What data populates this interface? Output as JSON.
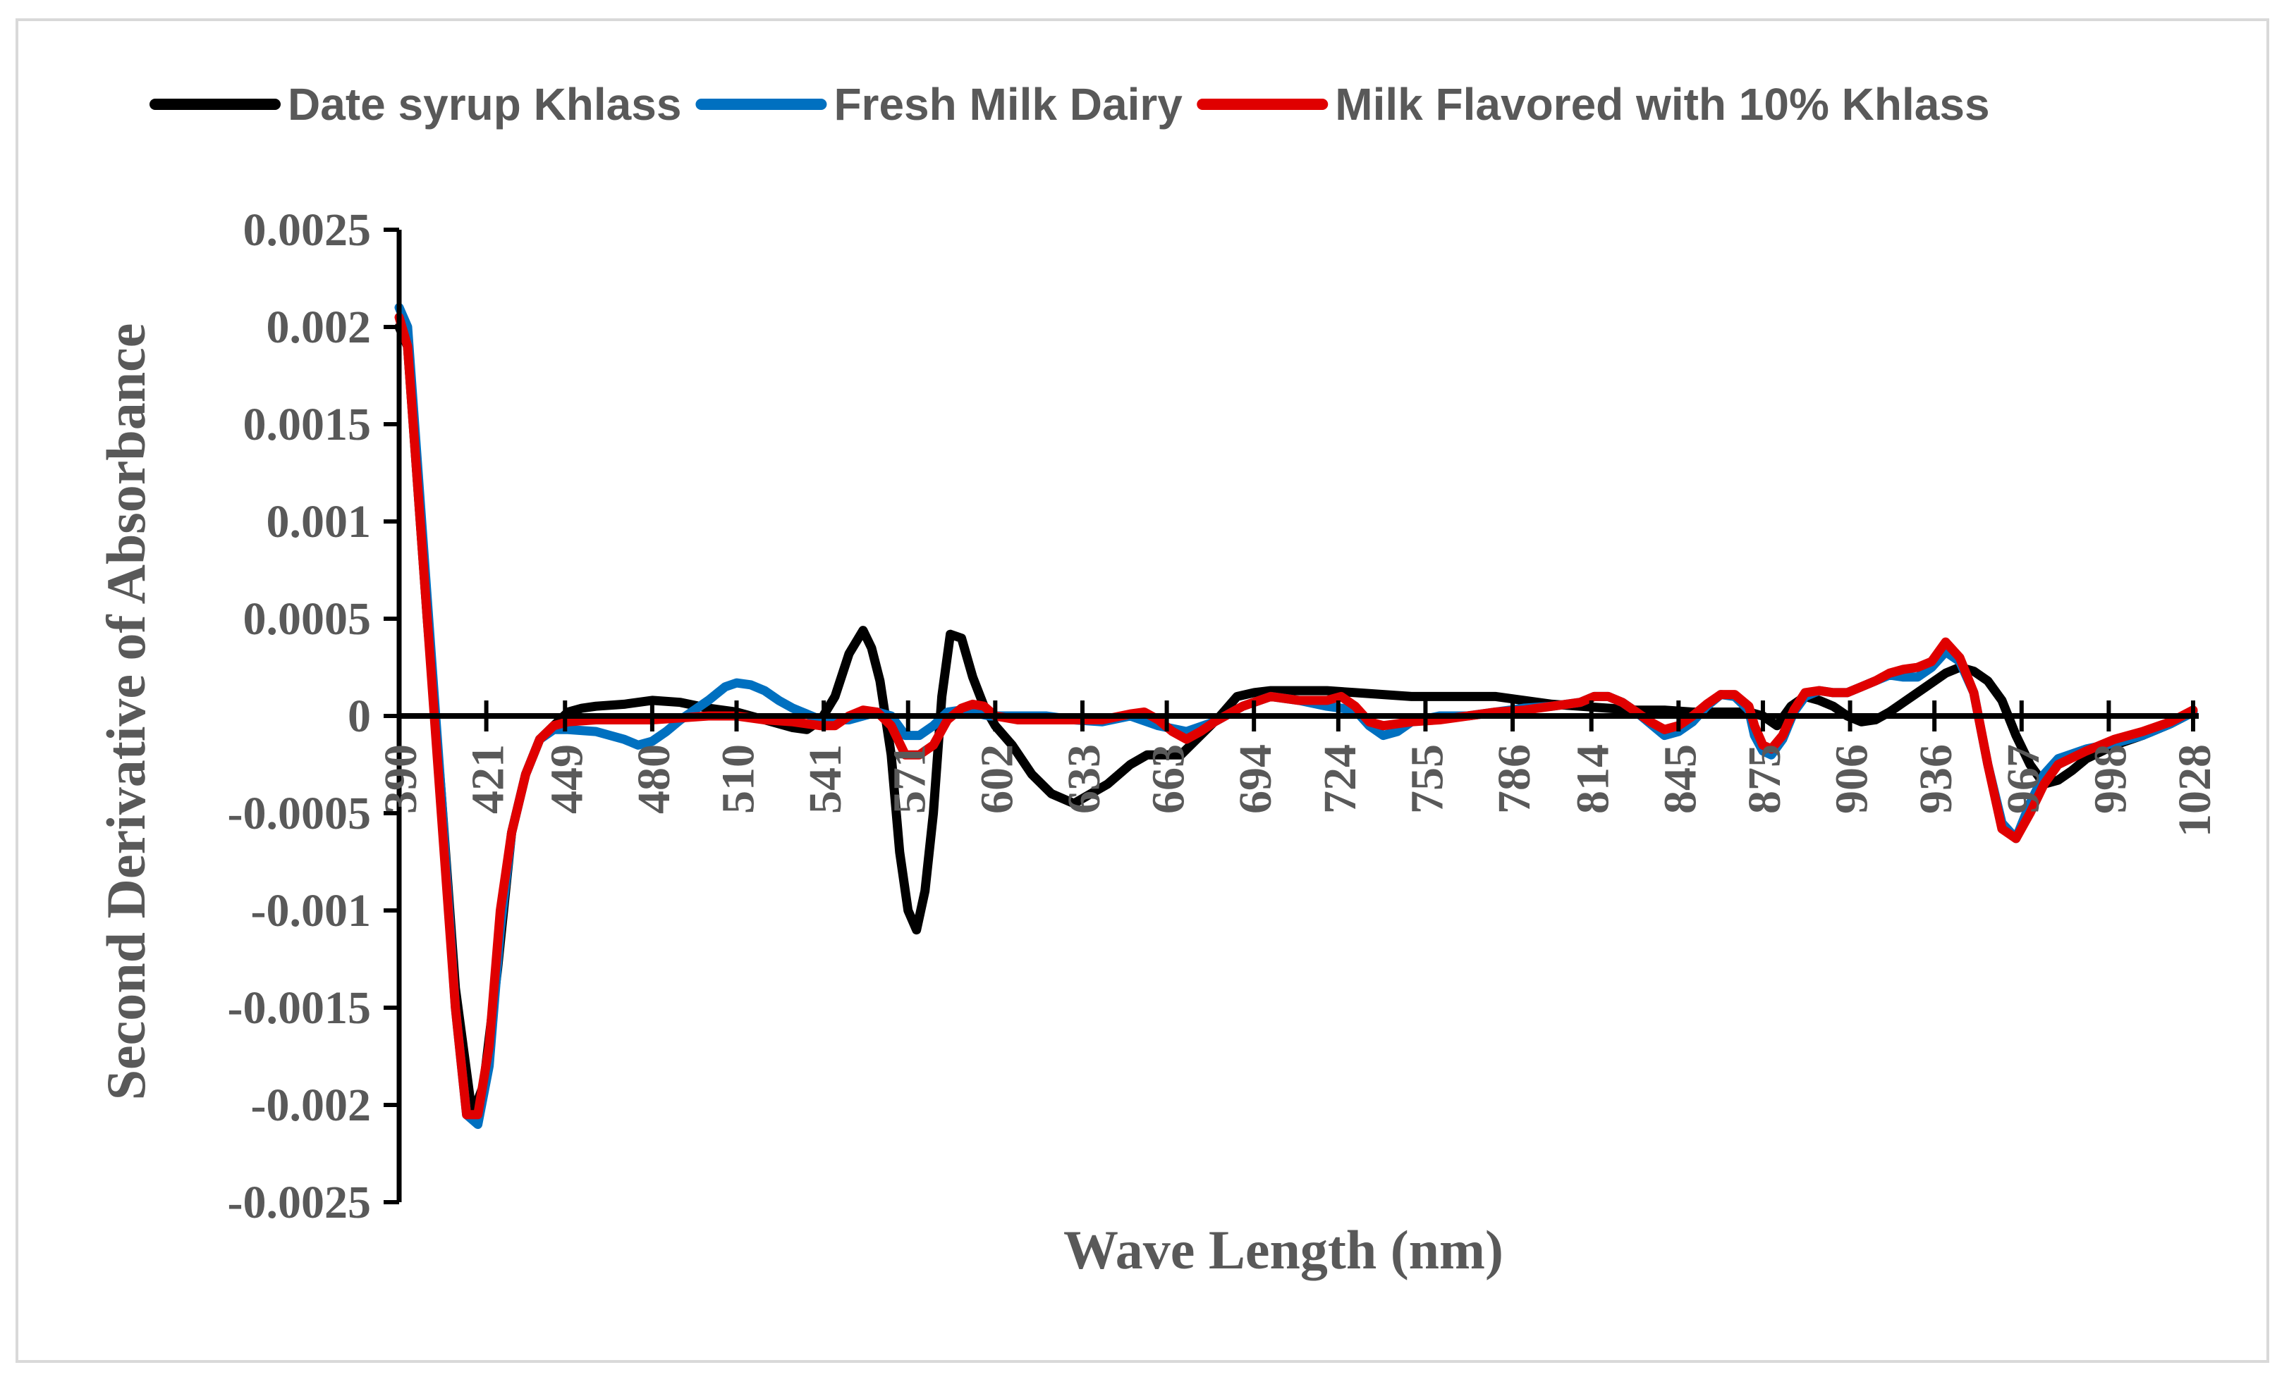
{
  "chart_data": {
    "type": "line",
    "xlabel": "Wave Length (nm)",
    "ylabel": "Second Derivative of Absorbance",
    "xlim": [
      390,
      1030
    ],
    "ylim": [
      -0.0025,
      0.0025
    ],
    "y_ticks": [
      0.0025,
      0.002,
      0.0015,
      0.001,
      0.0005,
      0,
      -0.0005,
      -0.001,
      -0.0015,
      -0.002,
      -0.0025
    ],
    "y_tick_labels": [
      "0.0025",
      "0.002",
      "0.0015",
      "0.001",
      "0.0005",
      "0",
      "-0.0005",
      "-0.001",
      "-0.0015",
      "-0.002",
      "-0.0025"
    ],
    "x_ticks": [
      390,
      421,
      449,
      480,
      510,
      541,
      571,
      602,
      633,
      663,
      694,
      724,
      755,
      786,
      814,
      845,
      875,
      906,
      936,
      967,
      998,
      1028
    ],
    "x_tick_labels": [
      "390",
      "421",
      "449",
      "480",
      "510",
      "541",
      "571",
      "602",
      "633",
      "663",
      "694",
      "724",
      "755",
      "786",
      "814",
      "845",
      "875",
      "906",
      "936",
      "967",
      "998",
      "1028"
    ],
    "legend_position": "top",
    "series": [
      {
        "name": "Date syrup Khlass",
        "color": "#000000",
        "x": [
          390,
          393,
          400,
          405,
          410,
          416,
          420,
          425,
          430,
          435,
          440,
          445,
          450,
          455,
          460,
          470,
          480,
          490,
          500,
          510,
          520,
          530,
          535,
          540,
          545,
          550,
          555,
          558,
          561,
          565,
          568,
          571,
          574,
          577,
          580,
          583,
          586,
          590,
          594,
          598,
          602,
          608,
          615,
          622,
          630,
          636,
          642,
          650,
          656,
          662,
          668,
          675,
          682,
          688,
          694,
          700,
          710,
          720,
          730,
          740,
          750,
          760,
          770,
          780,
          790,
          800,
          810,
          820,
          830,
          840,
          850,
          860,
          870,
          875,
          880,
          885,
          890,
          895,
          900,
          905,
          910,
          915,
          920,
          925,
          930,
          935,
          940,
          945,
          950,
          955,
          960,
          965,
          970,
          975,
          980,
          985,
          990,
          1000,
          1010,
          1020,
          1028
        ],
        "values": [
          0.002,
          0.0019,
          0.0005,
          -0.0004,
          -0.0014,
          -0.00205,
          -0.0019,
          -0.0013,
          -0.0006,
          -0.0003,
          -0.00012,
          -5e-05,
          2e-05,
          4e-05,
          5e-05,
          6e-05,
          8e-05,
          7e-05,
          4e-05,
          2e-05,
          -2e-05,
          -6e-05,
          -7e-05,
          -2e-05,
          0.0001,
          0.00032,
          0.00044,
          0.00035,
          0.00018,
          -0.0002,
          -0.0007,
          -0.001,
          -0.0011,
          -0.0009,
          -0.0005,
          0.0001,
          0.00042,
          0.0004,
          0.0002,
          5e-05,
          -5e-05,
          -0.00015,
          -0.0003,
          -0.0004,
          -0.00045,
          -0.0004,
          -0.00035,
          -0.00025,
          -0.0002,
          -0.0002,
          -0.0002,
          -0.0001,
          0,
          0.0001,
          0.00012,
          0.00013,
          0.00013,
          0.00013,
          0.00012,
          0.00011,
          0.0001,
          0.0001,
          0.0001,
          0.0001,
          8e-05,
          6e-05,
          5e-05,
          4e-05,
          3e-05,
          3e-05,
          2e-05,
          2e-05,
          2e-05,
          0,
          -5e-05,
          5e-05,
          0.0001,
          8e-05,
          5e-05,
          0,
          -3e-05,
          -2e-05,
          2e-05,
          7e-05,
          0.00012,
          0.00017,
          0.00022,
          0.00025,
          0.00023,
          0.00018,
          8e-05,
          -0.0001,
          -0.00025,
          -0.00035,
          -0.00033,
          -0.00028,
          -0.00022,
          -0.00015,
          -0.0001,
          -4e-05,
          2e-05
        ]
      },
      {
        "name": "Fresh Milk Dairy",
        "color": "#0070c0",
        "x": [
          390,
          393,
          400,
          405,
          410,
          414,
          418,
          422,
          426,
          430,
          435,
          440,
          445,
          450,
          460,
          470,
          475,
          480,
          485,
          490,
          500,
          506,
          510,
          515,
          520,
          525,
          530,
          535,
          540,
          550,
          560,
          565,
          570,
          575,
          580,
          585,
          590,
          600,
          610,
          620,
          630,
          640,
          650,
          660,
          670,
          680,
          690,
          700,
          710,
          720,
          730,
          735,
          740,
          745,
          750,
          760,
          770,
          780,
          790,
          800,
          810,
          815,
          820,
          825,
          830,
          835,
          840,
          845,
          850,
          855,
          860,
          865,
          870,
          872,
          875,
          878,
          882,
          886,
          890,
          895,
          900,
          905,
          910,
          915,
          920,
          925,
          930,
          935,
          940,
          945,
          950,
          955,
          960,
          965,
          970,
          975,
          980,
          990,
          1000,
          1010,
          1020,
          1028
        ],
        "values": [
          0.0021,
          0.002,
          0.0006,
          -0.0004,
          -0.0015,
          -0.00205,
          -0.0021,
          -0.0018,
          -0.0011,
          -0.0006,
          -0.0003,
          -0.00012,
          -7e-05,
          -7e-05,
          -8e-05,
          -0.00012,
          -0.00015,
          -0.00013,
          -8e-05,
          -2e-05,
          8e-05,
          0.00015,
          0.00017,
          0.00016,
          0.00013,
          8e-05,
          4e-05,
          1e-05,
          -2e-05,
          -2e-05,
          2e-05,
          0,
          -0.0001,
          -0.0001,
          -5e-05,
          2e-05,
          3e-05,
          0,
          0,
          0,
          -2e-05,
          -3e-05,
          0,
          -5e-05,
          -8e-05,
          -3e-05,
          5e-05,
          0.0001,
          8e-05,
          5e-05,
          3e-05,
          -5e-05,
          -0.0001,
          -8e-05,
          -3e-05,
          0,
          0,
          2e-05,
          4e-05,
          5e-05,
          7e-05,
          0.0001,
          0.0001,
          7e-05,
          2e-05,
          -4e-05,
          -0.0001,
          -8e-05,
          -3e-05,
          5e-05,
          0.00011,
          0.0001,
          3e-05,
          -0.0001,
          -0.00018,
          -0.0002,
          -0.00012,
          2e-05,
          0.0001,
          0.00013,
          0.00012,
          0.00012,
          0.00015,
          0.00018,
          0.00021,
          0.0002,
          0.0002,
          0.00025,
          0.00033,
          0.00028,
          0.00012,
          -0.00025,
          -0.00055,
          -0.00063,
          -0.00045,
          -0.0003,
          -0.00022,
          -0.00017,
          -0.00014,
          -0.0001,
          -4e-05,
          2e-05
        ]
      },
      {
        "name": "Milk Flavored with 10% Khlass",
        "color": "#e00000",
        "x": [
          390,
          393,
          400,
          405,
          410,
          414,
          418,
          422,
          426,
          430,
          435,
          440,
          445,
          450,
          460,
          470,
          480,
          490,
          500,
          510,
          520,
          530,
          540,
          545,
          550,
          555,
          560,
          565,
          570,
          575,
          580,
          585,
          590,
          594,
          598,
          602,
          610,
          620,
          630,
          640,
          650,
          655,
          660,
          665,
          670,
          675,
          680,
          690,
          700,
          710,
          720,
          725,
          730,
          735,
          740,
          745,
          750,
          760,
          770,
          780,
          790,
          800,
          810,
          815,
          820,
          825,
          830,
          835,
          840,
          845,
          850,
          855,
          860,
          865,
          870,
          872,
          875,
          878,
          882,
          886,
          890,
          895,
          900,
          905,
          910,
          915,
          920,
          925,
          930,
          935,
          940,
          945,
          950,
          955,
          960,
          965,
          970,
          975,
          980,
          990,
          1000,
          1010,
          1020,
          1028
        ],
        "values": [
          0.00205,
          0.0019,
          0.0005,
          -0.0005,
          -0.0015,
          -0.00205,
          -0.00205,
          -0.0017,
          -0.001,
          -0.0006,
          -0.0003,
          -0.00012,
          -5e-05,
          -3e-05,
          -2e-05,
          -2e-05,
          -2e-05,
          -1e-05,
          0,
          0,
          -2e-05,
          -3e-05,
          -5e-05,
          -5e-05,
          0,
          3e-05,
          2e-05,
          -5e-05,
          -0.0002,
          -0.0002,
          -0.00015,
          -2e-05,
          4e-05,
          6e-05,
          5e-05,
          0,
          -2e-05,
          -2e-05,
          -2e-05,
          -2e-05,
          1e-05,
          2e-05,
          -2e-05,
          -8e-05,
          -0.00012,
          -8e-05,
          -3e-05,
          5e-05,
          0.0001,
          8e-05,
          8e-05,
          0.0001,
          5e-05,
          -3e-05,
          -5e-05,
          -4e-05,
          -3e-05,
          -2e-05,
          0,
          2e-05,
          3e-05,
          5e-05,
          7e-05,
          0.0001,
          0.0001,
          7e-05,
          2e-05,
          -3e-05,
          -7e-05,
          -5e-05,
          0,
          6e-05,
          0.00011,
          0.00011,
          5e-05,
          -5e-05,
          -0.00015,
          -0.00017,
          -0.0001,
          3e-05,
          0.00012,
          0.00013,
          0.00012,
          0.00012,
          0.00015,
          0.00018,
          0.00022,
          0.00024,
          0.00025,
          0.00028,
          0.00038,
          0.0003,
          0.00012,
          -0.00025,
          -0.00058,
          -0.00063,
          -0.0005,
          -0.00035,
          -0.00025,
          -0.00018,
          -0.00012,
          -8e-05,
          -3e-05,
          3e-05
        ]
      }
    ]
  }
}
